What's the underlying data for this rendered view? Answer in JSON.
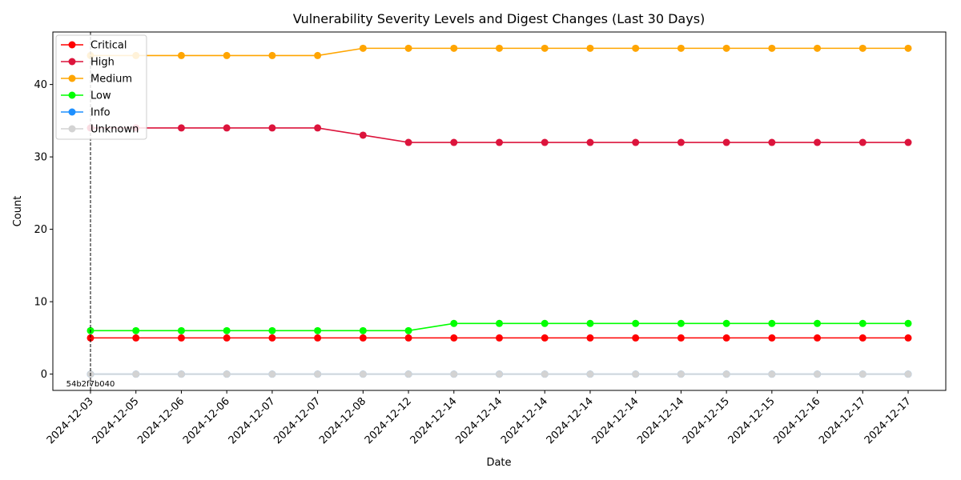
{
  "chart_data": {
    "type": "line",
    "title": "Vulnerability Severity Levels and Digest Changes (Last 30 Days)",
    "xlabel": "Date",
    "ylabel": "Count",
    "ylim": [
      -2.25,
      47.25
    ],
    "yticks": [
      0,
      10,
      20,
      30,
      40
    ],
    "categories": [
      "2024-12-03",
      "2024-12-05",
      "2024-12-06",
      "2024-12-06",
      "2024-12-07",
      "2024-12-07",
      "2024-12-08",
      "2024-12-12",
      "2024-12-14",
      "2024-12-14",
      "2024-12-14",
      "2024-12-14",
      "2024-12-14",
      "2024-12-14",
      "2024-12-15",
      "2024-12-15",
      "2024-12-16",
      "2024-12-17",
      "2024-12-17"
    ],
    "legend_position": "upper-left",
    "grid": false,
    "series": [
      {
        "name": "Critical",
        "color": "#ff0000",
        "values": [
          5,
          5,
          5,
          5,
          5,
          5,
          5,
          5,
          5,
          5,
          5,
          5,
          5,
          5,
          5,
          5,
          5,
          5,
          5
        ]
      },
      {
        "name": "High",
        "color": "#dc143c",
        "values": [
          34,
          34,
          34,
          34,
          34,
          34,
          33,
          32,
          32,
          32,
          32,
          32,
          32,
          32,
          32,
          32,
          32,
          32,
          32
        ]
      },
      {
        "name": "Medium",
        "color": "#ffa500",
        "values": [
          44,
          44,
          44,
          44,
          44,
          44,
          45,
          45,
          45,
          45,
          45,
          45,
          45,
          45,
          45,
          45,
          45,
          45,
          45
        ]
      },
      {
        "name": "Low",
        "color": "#00ff00",
        "values": [
          6,
          6,
          6,
          6,
          6,
          6,
          6,
          6,
          7,
          7,
          7,
          7,
          7,
          7,
          7,
          7,
          7,
          7,
          7
        ]
      },
      {
        "name": "Info",
        "color": "#1e90ff",
        "values": [
          0,
          0,
          0,
          0,
          0,
          0,
          0,
          0,
          0,
          0,
          0,
          0,
          0,
          0,
          0,
          0,
          0,
          0,
          0
        ]
      },
      {
        "name": "Unknown",
        "color": "#d3d3d3",
        "values": [
          0,
          0,
          0,
          0,
          0,
          0,
          0,
          0,
          0,
          0,
          0,
          0,
          0,
          0,
          0,
          0,
          0,
          0,
          0
        ]
      }
    ],
    "annotations": [
      {
        "category_index": 0,
        "label": "54b2f7b040",
        "style": "dashed-vertical-line"
      }
    ]
  }
}
